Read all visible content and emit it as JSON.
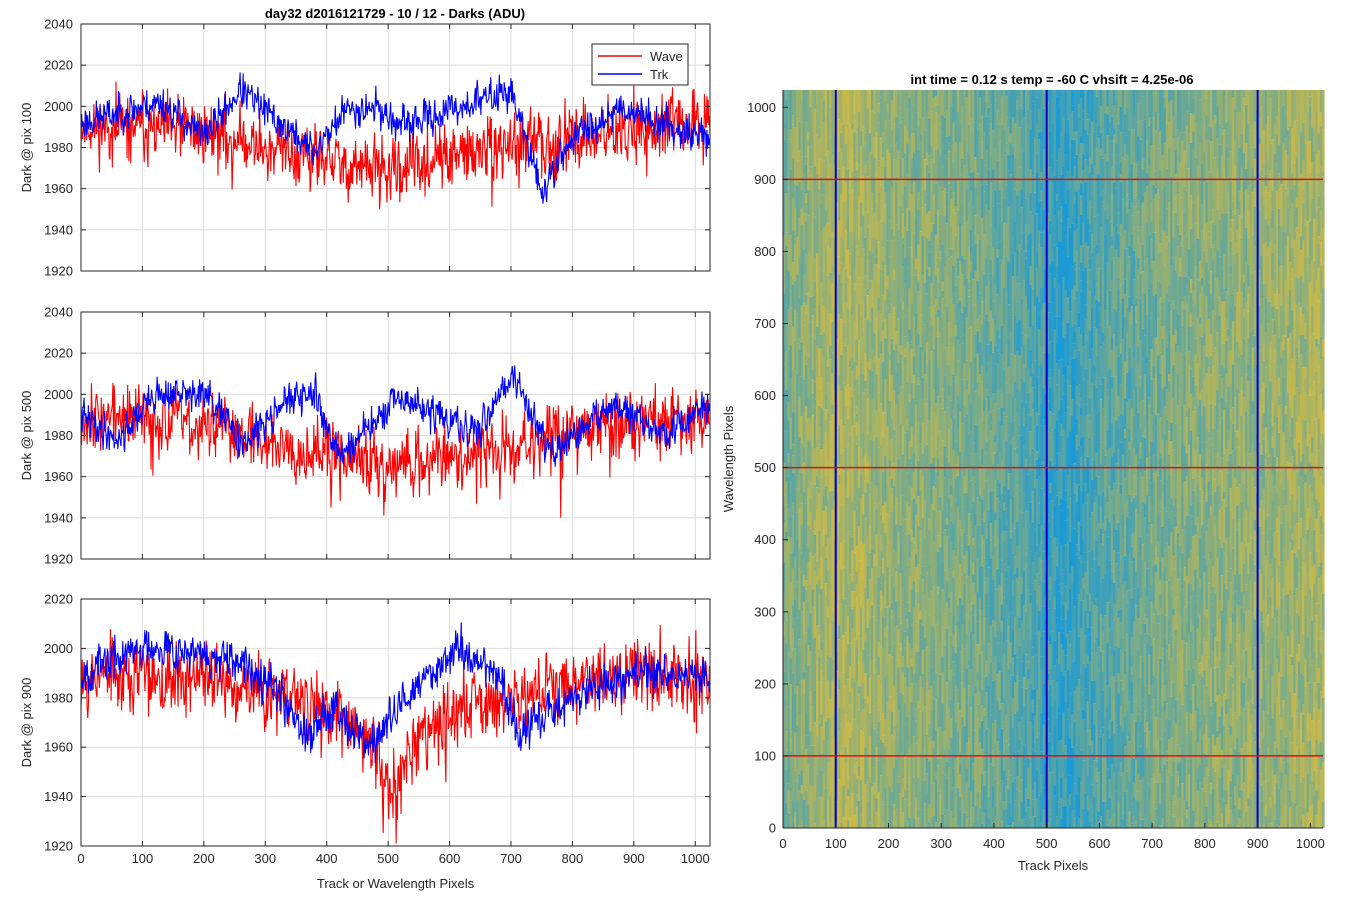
{
  "figure_title": "day32 d2016121729 - 10 / 12 - Darks (ADU)",
  "colors": {
    "wave": "#ff0000",
    "trk": "#0000ff",
    "heatmap_low": "#1a9ad6",
    "heatmap_high": "#c9b94a",
    "marker_vertical": "#0000c8",
    "marker_horizontal": "#dd1111"
  },
  "chart_data": [
    {
      "type": "line",
      "ylabel": "Dark @ pix 100",
      "xlabel": "",
      "xlim": [
        0,
        1024
      ],
      "ylim": [
        1920,
        2040
      ],
      "xticks": [
        0,
        100,
        200,
        300,
        400,
        500,
        600,
        700,
        800,
        900,
        1000
      ],
      "yticks": [
        1920,
        1940,
        1960,
        1980,
        2000,
        2020,
        2040
      ],
      "grid": true,
      "legend": {
        "position": "top-right",
        "entries": [
          "Wave",
          "Trk"
        ]
      },
      "series": [
        {
          "name": "Wave",
          "color": "#ff0000",
          "level": [
            [
              0,
              1990
            ],
            [
              200,
              1988
            ],
            [
              300,
              1980
            ],
            [
              420,
              1972
            ],
            [
              500,
              1968
            ],
            [
              600,
              1975
            ],
            [
              700,
              1980
            ],
            [
              800,
              1985
            ],
            [
              900,
              1988
            ],
            [
              1024,
              1992
            ]
          ],
          "noise": 11
        },
        {
          "name": "Trk",
          "color": "#0000ff",
          "level": [
            [
              0,
              1992
            ],
            [
              130,
              2002
            ],
            [
              200,
              1985
            ],
            [
              260,
              2008
            ],
            [
              330,
              1990
            ],
            [
              380,
              1978
            ],
            [
              430,
              1998
            ],
            [
              480,
              2000
            ],
            [
              520,
              1990
            ],
            [
              570,
              1995
            ],
            [
              700,
              2008
            ],
            [
              750,
              1958
            ],
            [
              800,
              1985
            ],
            [
              880,
              2000
            ],
            [
              960,
              1990
            ],
            [
              1024,
              1985
            ]
          ],
          "noise": 6
        }
      ]
    },
    {
      "type": "line",
      "ylabel": "Dark @ pix 500",
      "xlabel": "",
      "xlim": [
        0,
        1024
      ],
      "ylim": [
        1920,
        2040
      ],
      "xticks": [
        0,
        100,
        200,
        300,
        400,
        500,
        600,
        700,
        800,
        900,
        1000
      ],
      "yticks": [
        1920,
        1940,
        1960,
        1980,
        2000,
        2020,
        2040
      ],
      "grid": true,
      "series": [
        {
          "name": "Wave",
          "color": "#ff0000",
          "level": [
            [
              0,
              1990
            ],
            [
              150,
              1988
            ],
            [
              300,
              1978
            ],
            [
              500,
              1966
            ],
            [
              650,
              1972
            ],
            [
              800,
              1982
            ],
            [
              1024,
              1990
            ]
          ],
          "noise": 11
        },
        {
          "name": "Trk",
          "color": "#0000ff",
          "level": [
            [
              0,
              1990
            ],
            [
              60,
              1978
            ],
            [
              120,
              2000
            ],
            [
              200,
              2000
            ],
            [
              270,
              1975
            ],
            [
              320,
              1995
            ],
            [
              380,
              2000
            ],
            [
              420,
              1970
            ],
            [
              520,
              1998
            ],
            [
              580,
              1990
            ],
            [
              640,
              1980
            ],
            [
              700,
              2010
            ],
            [
              770,
              1970
            ],
            [
              860,
              1995
            ],
            [
              950,
              1980
            ],
            [
              1024,
              1995
            ]
          ],
          "noise": 6
        }
      ]
    },
    {
      "type": "line",
      "ylabel": "Dark @ pix 900",
      "xlabel": "Track or Wavelength Pixels",
      "xlim": [
        0,
        1024
      ],
      "ylim": [
        1920,
        2020
      ],
      "xticks": [
        0,
        100,
        200,
        300,
        400,
        500,
        600,
        700,
        800,
        900,
        1000
      ],
      "yticks": [
        1920,
        1940,
        1960,
        1980,
        2000,
        2020
      ],
      "grid": true,
      "series": [
        {
          "name": "Wave",
          "color": "#ff0000",
          "level": [
            [
              0,
              1990
            ],
            [
              200,
              1988
            ],
            [
              350,
              1980
            ],
            [
              450,
              1968
            ],
            [
              510,
              1945
            ],
            [
              560,
              1970
            ],
            [
              700,
              1982
            ],
            [
              850,
              1988
            ],
            [
              1024,
              1990
            ]
          ],
          "noise": 10
        },
        {
          "name": "Trk",
          "color": "#0000ff",
          "level": [
            [
              0,
              1990
            ],
            [
              120,
              2002
            ],
            [
              220,
              1995
            ],
            [
              300,
              1990
            ],
            [
              370,
              1965
            ],
            [
              410,
              1978
            ],
            [
              470,
              1960
            ],
            [
              530,
              1980
            ],
            [
              610,
              2000
            ],
            [
              680,
              1990
            ],
            [
              710,
              1965
            ],
            [
              800,
              1980
            ],
            [
              900,
              1990
            ],
            [
              1024,
              1988
            ]
          ],
          "noise": 6
        }
      ]
    },
    {
      "type": "heatmap",
      "title": "int time = 0.12 s    temp = -60 C    vhsift = 4.25e-06",
      "xlabel": "Track Pixels",
      "ylabel": "Wavelength Pixels",
      "xlim": [
        0,
        1024
      ],
      "ylim": [
        0,
        1024
      ],
      "xticks": [
        0,
        100,
        200,
        300,
        400,
        500,
        600,
        700,
        800,
        900,
        1000
      ],
      "yticks": [
        0,
        100,
        200,
        300,
        400,
        500,
        600,
        700,
        800,
        900,
        1000
      ],
      "grid": false,
      "vertical_markers": [
        100,
        500,
        900
      ],
      "horizontal_markers": [
        100,
        500,
        900
      ],
      "column_level": [
        [
          0,
          0.55
        ],
        [
          100,
          0.85
        ],
        [
          200,
          0.7
        ],
        [
          350,
          0.55
        ],
        [
          450,
          0.35
        ],
        [
          530,
          0.15
        ],
        [
          600,
          0.35
        ],
        [
          750,
          0.6
        ],
        [
          900,
          0.7
        ],
        [
          1024,
          0.8
        ]
      ]
    }
  ]
}
